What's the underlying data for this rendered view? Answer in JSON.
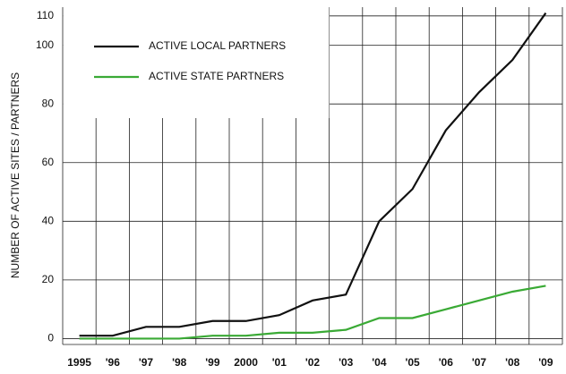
{
  "chart_data": {
    "type": "line",
    "y_label": "NUMBER OF ACTIVE SITES / PARTNERS",
    "categories": [
      "1995",
      "'96",
      "'97",
      "'98",
      "'99",
      "2000",
      "'01",
      "'02",
      "'03",
      "'04",
      "'05",
      "'06",
      "'07",
      "'08",
      "'09"
    ],
    "series": [
      {
        "name": "ACTIVE LOCAL PARTNERS",
        "color": "#111111",
        "values": [
          1,
          1,
          4,
          4,
          6,
          6,
          8,
          13,
          15,
          40,
          51,
          71,
          84,
          95,
          111
        ]
      },
      {
        "name": "ACTIVE STATE PARTNERS",
        "color": "#3aaa35",
        "values": [
          0,
          0,
          0,
          0,
          1,
          1,
          2,
          2,
          3,
          7,
          7,
          10,
          13,
          16,
          18
        ]
      }
    ],
    "ylim": [
      -2,
      113
    ],
    "yticks": [
      0,
      20,
      40,
      60,
      80,
      100,
      110
    ],
    "grid": true,
    "legend": "upper left"
  }
}
